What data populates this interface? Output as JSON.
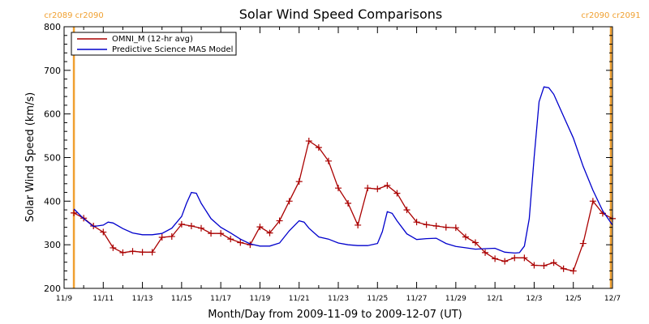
{
  "chart_data": {
    "type": "line",
    "title": "Solar Wind Speed Comparisons",
    "xlabel": "Month/Day from 2009-11-09 to 2009-12-07 (UT)",
    "ylabel": "Solar Wind Speed (km/s)",
    "xlim": [
      "2009-11-09",
      "2009-12-07"
    ],
    "ylim": [
      200,
      800
    ],
    "y_ticks": [
      200,
      300,
      400,
      500,
      600,
      700,
      800
    ],
    "x_ticks": [
      {
        "date": "2009-11-09",
        "label": "11/9"
      },
      {
        "date": "2009-11-11",
        "label": "11/11"
      },
      {
        "date": "2009-11-13",
        "label": "11/13"
      },
      {
        "date": "2009-11-15",
        "label": "11/15"
      },
      {
        "date": "2009-11-17",
        "label": "11/17"
      },
      {
        "date": "2009-11-19",
        "label": "11/19"
      },
      {
        "date": "2009-11-21",
        "label": "11/21"
      },
      {
        "date": "2009-11-23",
        "label": "11/23"
      },
      {
        "date": "2009-11-25",
        "label": "11/25"
      },
      {
        "date": "2009-11-27",
        "label": "11/27"
      },
      {
        "date": "2009-11-29",
        "label": "11/29"
      },
      {
        "date": "2009-12-01",
        "label": "12/1"
      },
      {
        "date": "2009-12-03",
        "label": "12/3"
      },
      {
        "date": "2009-12-05",
        "label": "12/5"
      },
      {
        "date": "2009-12-07",
        "label": "12/7"
      }
    ],
    "legend_position": "top-left",
    "series": [
      {
        "name": "OMNI_M (12-hr avg)",
        "color": "#aa0000",
        "marker": "plus",
        "points": [
          [
            "2009-11-09 12:00",
            373
          ],
          [
            "2009-11-10 00:00",
            361
          ],
          [
            "2009-11-10 12:00",
            343
          ],
          [
            "2009-11-11 00:00",
            329
          ],
          [
            "2009-11-11 12:00",
            293
          ],
          [
            "2009-11-12 00:00",
            282
          ],
          [
            "2009-11-12 12:00",
            285
          ],
          [
            "2009-11-13 00:00",
            283
          ],
          [
            "2009-11-13 12:00",
            283
          ],
          [
            "2009-11-14 00:00",
            317
          ],
          [
            "2009-11-14 12:00",
            319
          ],
          [
            "2009-11-15 00:00",
            347
          ],
          [
            "2009-11-15 12:00",
            343
          ],
          [
            "2009-11-16 00:00",
            338
          ],
          [
            "2009-11-16 12:00",
            326
          ],
          [
            "2009-11-17 00:00",
            326
          ],
          [
            "2009-11-17 12:00",
            313
          ],
          [
            "2009-11-18 00:00",
            305
          ],
          [
            "2009-11-18 12:00",
            300
          ],
          [
            "2009-11-19 00:00",
            341
          ],
          [
            "2009-11-19 12:00",
            327
          ],
          [
            "2009-11-20 00:00",
            355
          ],
          [
            "2009-11-20 12:00",
            400
          ],
          [
            "2009-11-21 00:00",
            445
          ],
          [
            "2009-11-21 12:00",
            538
          ],
          [
            "2009-11-22 00:00",
            523
          ],
          [
            "2009-11-22 12:00",
            492
          ],
          [
            "2009-11-23 00:00",
            430
          ],
          [
            "2009-11-23 12:00",
            395
          ],
          [
            "2009-11-24 00:00",
            345
          ],
          [
            "2009-11-24 12:00",
            430
          ],
          [
            "2009-11-25 00:00",
            428
          ],
          [
            "2009-11-25 12:00",
            436
          ],
          [
            "2009-11-26 00:00",
            418
          ],
          [
            "2009-11-26 12:00",
            380
          ],
          [
            "2009-11-27 00:00",
            352
          ],
          [
            "2009-11-27 12:00",
            346
          ],
          [
            "2009-11-28 00:00",
            343
          ],
          [
            "2009-11-28 12:00",
            340
          ],
          [
            "2009-11-29 00:00",
            339
          ],
          [
            "2009-11-29 12:00",
            318
          ],
          [
            "2009-11-30 00:00",
            305
          ],
          [
            "2009-11-30 12:00",
            282
          ],
          [
            "2009-12-01 00:00",
            268
          ],
          [
            "2009-12-01 12:00",
            262
          ],
          [
            "2009-12-02 00:00",
            270
          ],
          [
            "2009-12-02 12:00",
            270
          ],
          [
            "2009-12-03 00:00",
            253
          ],
          [
            "2009-12-03 12:00",
            252
          ],
          [
            "2009-12-04 00:00",
            259
          ],
          [
            "2009-12-04 12:00",
            245
          ],
          [
            "2009-12-05 00:00",
            240
          ],
          [
            "2009-12-05 12:00",
            303
          ],
          [
            "2009-12-06 00:00",
            400
          ],
          [
            "2009-12-06 12:00",
            372
          ],
          [
            "2009-12-07 00:00",
            360
          ]
        ]
      },
      {
        "name": "Predictive Science MAS Model",
        "color": "#0000cc",
        "marker": "none",
        "points": [
          [
            "2009-11-09 12:00",
            382
          ],
          [
            "2009-11-10 00:00",
            360
          ],
          [
            "2009-11-10 12:00",
            342
          ],
          [
            "2009-11-11 00:00",
            345
          ],
          [
            "2009-11-11 06:00",
            352
          ],
          [
            "2009-11-11 12:00",
            350
          ],
          [
            "2009-11-12 00:00",
            337
          ],
          [
            "2009-11-12 12:00",
            327
          ],
          [
            "2009-11-13 00:00",
            323
          ],
          [
            "2009-11-13 12:00",
            323
          ],
          [
            "2009-11-14 00:00",
            326
          ],
          [
            "2009-11-14 12:00",
            338
          ],
          [
            "2009-11-15 00:00",
            365
          ],
          [
            "2009-11-15 06:00",
            395
          ],
          [
            "2009-11-15 12:00",
            420
          ],
          [
            "2009-11-15 18:00",
            418
          ],
          [
            "2009-11-16 00:00",
            395
          ],
          [
            "2009-11-16 12:00",
            360
          ],
          [
            "2009-11-17 00:00",
            340
          ],
          [
            "2009-11-17 12:00",
            327
          ],
          [
            "2009-11-18 00:00",
            313
          ],
          [
            "2009-11-18 12:00",
            302
          ],
          [
            "2009-11-19 00:00",
            297
          ],
          [
            "2009-11-19 12:00",
            297
          ],
          [
            "2009-11-20 00:00",
            304
          ],
          [
            "2009-11-20 12:00",
            332
          ],
          [
            "2009-11-21 00:00",
            355
          ],
          [
            "2009-11-21 06:00",
            352
          ],
          [
            "2009-11-21 12:00",
            338
          ],
          [
            "2009-11-22 00:00",
            318
          ],
          [
            "2009-11-22 12:00",
            313
          ],
          [
            "2009-11-23 00:00",
            304
          ],
          [
            "2009-11-23 12:00",
            300
          ],
          [
            "2009-11-24 00:00",
            298
          ],
          [
            "2009-11-24 12:00",
            298
          ],
          [
            "2009-11-25 00:00",
            303
          ],
          [
            "2009-11-25 06:00",
            330
          ],
          [
            "2009-11-25 12:00",
            376
          ],
          [
            "2009-11-25 18:00",
            372
          ],
          [
            "2009-11-26 00:00",
            355
          ],
          [
            "2009-11-26 12:00",
            325
          ],
          [
            "2009-11-27 00:00",
            312
          ],
          [
            "2009-11-27 12:00",
            314
          ],
          [
            "2009-11-28 00:00",
            315
          ],
          [
            "2009-11-28 12:00",
            303
          ],
          [
            "2009-11-29 00:00",
            296
          ],
          [
            "2009-11-29 12:00",
            293
          ],
          [
            "2009-11-30 00:00",
            290
          ],
          [
            "2009-11-30 12:00",
            291
          ],
          [
            "2009-12-01 00:00",
            292
          ],
          [
            "2009-12-01 12:00",
            283
          ],
          [
            "2009-12-02 00:00",
            281
          ],
          [
            "2009-12-02 06:00",
            282
          ],
          [
            "2009-12-02 12:00",
            297
          ],
          [
            "2009-12-02 18:00",
            360
          ],
          [
            "2009-12-03 00:00",
            500
          ],
          [
            "2009-12-03 06:00",
            628
          ],
          [
            "2009-12-03 12:00",
            662
          ],
          [
            "2009-12-03 18:00",
            660
          ],
          [
            "2009-12-04 00:00",
            645
          ],
          [
            "2009-12-04 12:00",
            595
          ],
          [
            "2009-12-05 00:00",
            545
          ],
          [
            "2009-12-05 12:00",
            480
          ],
          [
            "2009-12-06 00:00",
            425
          ],
          [
            "2009-12-06 12:00",
            378
          ],
          [
            "2009-12-07 00:00",
            345
          ]
        ]
      }
    ],
    "reference_lines": [
      {
        "date": "2009-11-09 12:00",
        "color": "#f0a030",
        "label": "cr2089 cr2090"
      },
      {
        "date": "2009-12-06 22:00",
        "color": "#f0a030",
        "label": "cr2090 cr2091"
      }
    ]
  }
}
